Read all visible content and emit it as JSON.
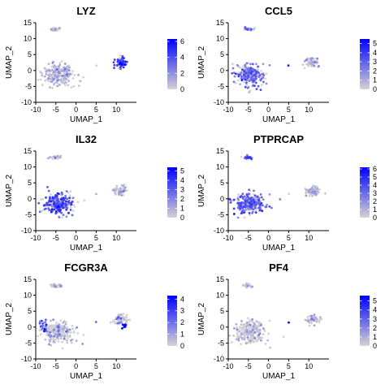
{
  "figure": {
    "panels": [
      {
        "gene": "LYZ",
        "xlabel": "UMAP_1",
        "ylabel": "UMAP_2",
        "xlim": [
          -10,
          15
        ],
        "ylim": [
          -10,
          15
        ],
        "xticks": [
          -10,
          -5,
          0,
          5,
          10
        ],
        "yticks": [
          -10,
          -5,
          0,
          5,
          10,
          15
        ],
        "colorbar_ticks": [
          0,
          2,
          4,
          6
        ],
        "colorbar_max": 6.3
      },
      {
        "gene": "CCL5",
        "xlabel": "UMAP_1",
        "ylabel": "UMAP_2",
        "xlim": [
          -10,
          15
        ],
        "ylim": [
          -10,
          15
        ],
        "xticks": [
          -10,
          -5,
          0,
          5,
          10
        ],
        "yticks": [
          -10,
          -5,
          0,
          5,
          10,
          15
        ],
        "colorbar_ticks": [
          0,
          1,
          2,
          3,
          4,
          5
        ],
        "colorbar_max": 5.5
      },
      {
        "gene": "IL32",
        "xlabel": "UMAP_1",
        "ylabel": "UMAP_2",
        "xlim": [
          -10,
          15
        ],
        "ylim": [
          -10,
          15
        ],
        "xticks": [
          -10,
          -5,
          0,
          5,
          10
        ],
        "yticks": [
          -10,
          -5,
          0,
          5,
          10,
          15
        ],
        "colorbar_ticks": [
          0,
          1,
          2,
          3,
          4,
          5
        ],
        "colorbar_max": 5.4
      },
      {
        "gene": "PTPRCAP",
        "xlabel": "UMAP_1",
        "ylabel": "UMAP_2",
        "xlim": [
          -10,
          15
        ],
        "ylim": [
          -10,
          15
        ],
        "xticks": [
          -10,
          -5,
          0,
          5,
          10
        ],
        "yticks": [
          -10,
          -5,
          0,
          5,
          10,
          15
        ],
        "colorbar_ticks": [
          0,
          1,
          2,
          3,
          4,
          5,
          6
        ],
        "colorbar_max": 6.2
      },
      {
        "gene": "FCGR3A",
        "xlabel": "UMAP_1",
        "ylabel": "UMAP_2",
        "xlim": [
          -10,
          15
        ],
        "ylim": [
          -10,
          15
        ],
        "xticks": [
          -10,
          -5,
          0,
          5,
          10
        ],
        "yticks": [
          -10,
          -5,
          0,
          5,
          10,
          15
        ],
        "colorbar_ticks": [
          0,
          1,
          2,
          3,
          4
        ],
        "colorbar_max": 4.3
      },
      {
        "gene": "PF4",
        "xlabel": "UMAP_1",
        "ylabel": "UMAP_2",
        "xlim": [
          -10,
          15
        ],
        "ylim": [
          -10,
          15
        ],
        "xticks": [
          -10,
          -5,
          0,
          5,
          10
        ],
        "yticks": [
          -10,
          -5,
          0,
          5,
          10,
          15
        ],
        "colorbar_ticks": [
          0,
          1,
          2,
          3,
          4,
          5
        ],
        "colorbar_max": 5.6
      }
    ]
  },
  "chart_data": [
    {
      "type": "scatter",
      "title": "LYZ",
      "xlabel": "UMAP_1",
      "ylabel": "UMAP_2",
      "xlim": [
        -10,
        15
      ],
      "ylim": [
        -10,
        15
      ],
      "color_scale": {
        "low": "#d3d3d3",
        "high": "#0000ff",
        "min": 0,
        "max": 6.3
      },
      "clusters": [
        {
          "center": [
            -5,
            13
          ],
          "spread": [
            1.2,
            0.5
          ],
          "n": 30,
          "expr": 0.4
        },
        {
          "center": [
            -4.5,
            -1.5
          ],
          "spread": [
            3.5,
            3
          ],
          "n": 230,
          "expr": 0.5
        },
        {
          "center": [
            11,
            2.5
          ],
          "spread": [
            1.7,
            1.5
          ],
          "n": 60,
          "expr": 4.5
        },
        {
          "center": [
            5,
            1.5
          ],
          "spread": [
            0.1,
            0.1
          ],
          "n": 1,
          "expr": 2.5
        }
      ]
    },
    {
      "type": "scatter",
      "title": "CCL5",
      "xlabel": "UMAP_1",
      "ylabel": "UMAP_2",
      "xlim": [
        -10,
        15
      ],
      "ylim": [
        -10,
        15
      ],
      "color_scale": {
        "low": "#d3d3d3",
        "high": "#0000ff",
        "min": 0,
        "max": 5.5
      },
      "clusters": [
        {
          "center": [
            -5,
            13
          ],
          "spread": [
            1.2,
            0.5
          ],
          "n": 30,
          "expr": 1.5
        },
        {
          "center": [
            -4.5,
            -1.5
          ],
          "spread": [
            3.5,
            3
          ],
          "n": 230,
          "expr": 2.5
        },
        {
          "center": [
            11,
            2.5
          ],
          "spread": [
            1.7,
            1.5
          ],
          "n": 60,
          "expr": 0.4
        },
        {
          "center": [
            5,
            1.5
          ],
          "spread": [
            0.1,
            0.1
          ],
          "n": 1,
          "expr": 5.0
        }
      ]
    },
    {
      "type": "scatter",
      "title": "IL32",
      "xlabel": "UMAP_1",
      "ylabel": "UMAP_2",
      "xlim": [
        -10,
        15
      ],
      "ylim": [
        -10,
        15
      ],
      "color_scale": {
        "low": "#d3d3d3",
        "high": "#0000ff",
        "min": 0,
        "max": 5.4
      },
      "clusters": [
        {
          "center": [
            -5,
            13
          ],
          "spread": [
            1.2,
            0.5
          ],
          "n": 30,
          "expr": 0.1
        },
        {
          "center": [
            -4.5,
            -1.5
          ],
          "spread": [
            3.5,
            3
          ],
          "n": 230,
          "expr": 3.0
        },
        {
          "center": [
            11,
            2.5
          ],
          "spread": [
            1.7,
            1.5
          ],
          "n": 60,
          "expr": 0.4
        },
        {
          "center": [
            5,
            1.5
          ],
          "spread": [
            0.1,
            0.1
          ],
          "n": 1,
          "expr": 0.2
        }
      ]
    },
    {
      "type": "scatter",
      "title": "PTPRCAP",
      "xlabel": "UMAP_1",
      "ylabel": "UMAP_2",
      "xlim": [
        -10,
        15
      ],
      "ylim": [
        -10,
        15
      ],
      "color_scale": {
        "low": "#d3d3d3",
        "high": "#0000ff",
        "min": 0,
        "max": 6.2
      },
      "clusters": [
        {
          "center": [
            -5,
            13
          ],
          "spread": [
            1.2,
            0.5
          ],
          "n": 30,
          "expr": 3.5
        },
        {
          "center": [
            -4.5,
            -1.5
          ],
          "spread": [
            3.5,
            3
          ],
          "n": 230,
          "expr": 3.2
        },
        {
          "center": [
            11,
            2.5
          ],
          "spread": [
            1.7,
            1.5
          ],
          "n": 60,
          "expr": 0.7
        },
        {
          "center": [
            5,
            1.5
          ],
          "spread": [
            0.1,
            0.1
          ],
          "n": 1,
          "expr": 0.3
        }
      ]
    },
    {
      "type": "scatter",
      "title": "FCGR3A",
      "xlabel": "UMAP_1",
      "ylabel": "UMAP_2",
      "xlim": [
        -10,
        15
      ],
      "ylim": [
        -10,
        15
      ],
      "color_scale": {
        "low": "#d3d3d3",
        "high": "#0000ff",
        "min": 0,
        "max": 4.3
      },
      "clusters": [
        {
          "center": [
            -5,
            13
          ],
          "spread": [
            1.2,
            0.5
          ],
          "n": 30,
          "expr": 0.1
        },
        {
          "center": [
            -4.5,
            -1.5
          ],
          "spread": [
            3.5,
            3
          ],
          "n": 230,
          "expr": 0.3
        },
        {
          "center": [
            -8,
            0
          ],
          "spread": [
            0.8,
            1.5
          ],
          "n": 25,
          "expr": 2.8
        },
        {
          "center": [
            11,
            2.5
          ],
          "spread": [
            1.7,
            1.5
          ],
          "n": 60,
          "expr": 0.6
        },
        {
          "center": [
            12.2,
            0.5
          ],
          "spread": [
            0.6,
            0.6
          ],
          "n": 18,
          "expr": 3.8
        },
        {
          "center": [
            5,
            1.5
          ],
          "spread": [
            0.1,
            0.1
          ],
          "n": 1,
          "expr": 0.5
        }
      ]
    },
    {
      "type": "scatter",
      "title": "PF4",
      "xlabel": "UMAP_1",
      "ylabel": "UMAP_2",
      "xlim": [
        -10,
        15
      ],
      "ylim": [
        -10,
        15
      ],
      "color_scale": {
        "low": "#d3d3d3",
        "high": "#0000ff",
        "min": 0,
        "max": 5.6
      },
      "clusters": [
        {
          "center": [
            -5,
            13
          ],
          "spread": [
            1.2,
            0.5
          ],
          "n": 30,
          "expr": 0.05
        },
        {
          "center": [
            -4.5,
            -1.5
          ],
          "spread": [
            3.5,
            3
          ],
          "n": 230,
          "expr": 0.0
        },
        {
          "center": [
            11,
            2.5
          ],
          "spread": [
            1.7,
            1.5
          ],
          "n": 60,
          "expr": 0.1
        },
        {
          "center": [
            5,
            1.5
          ],
          "spread": [
            0.1,
            0.1
          ],
          "n": 1,
          "expr": 5.2
        }
      ]
    }
  ]
}
